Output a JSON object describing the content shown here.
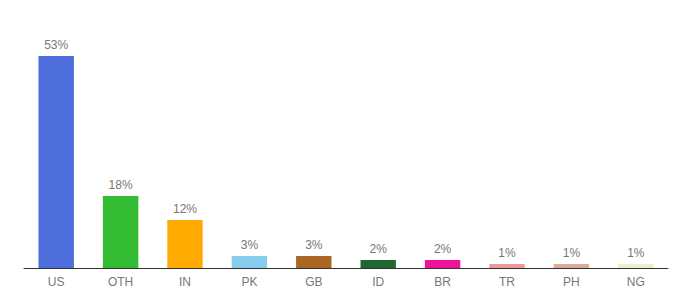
{
  "chart_data": {
    "type": "bar",
    "categories": [
      "US",
      "OTH",
      "IN",
      "PK",
      "GB",
      "ID",
      "BR",
      "TR",
      "PH",
      "NG"
    ],
    "values": [
      53,
      18,
      12,
      3,
      3,
      2,
      2,
      1,
      1,
      1
    ],
    "value_labels": [
      "53%",
      "18%",
      "12%",
      "3%",
      "3%",
      "2%",
      "2%",
      "1%",
      "1%",
      "1%"
    ],
    "colors": [
      "#4d6edb",
      "#33bb33",
      "#ffaa00",
      "#88ccee",
      "#aa6622",
      "#226633",
      "#ee1199",
      "#ee9999",
      "#ddaa99",
      "#eeeecc"
    ],
    "ylim": [
      0,
      60
    ],
    "data_labels": true,
    "tick_labels": "x",
    "grid": false
  }
}
